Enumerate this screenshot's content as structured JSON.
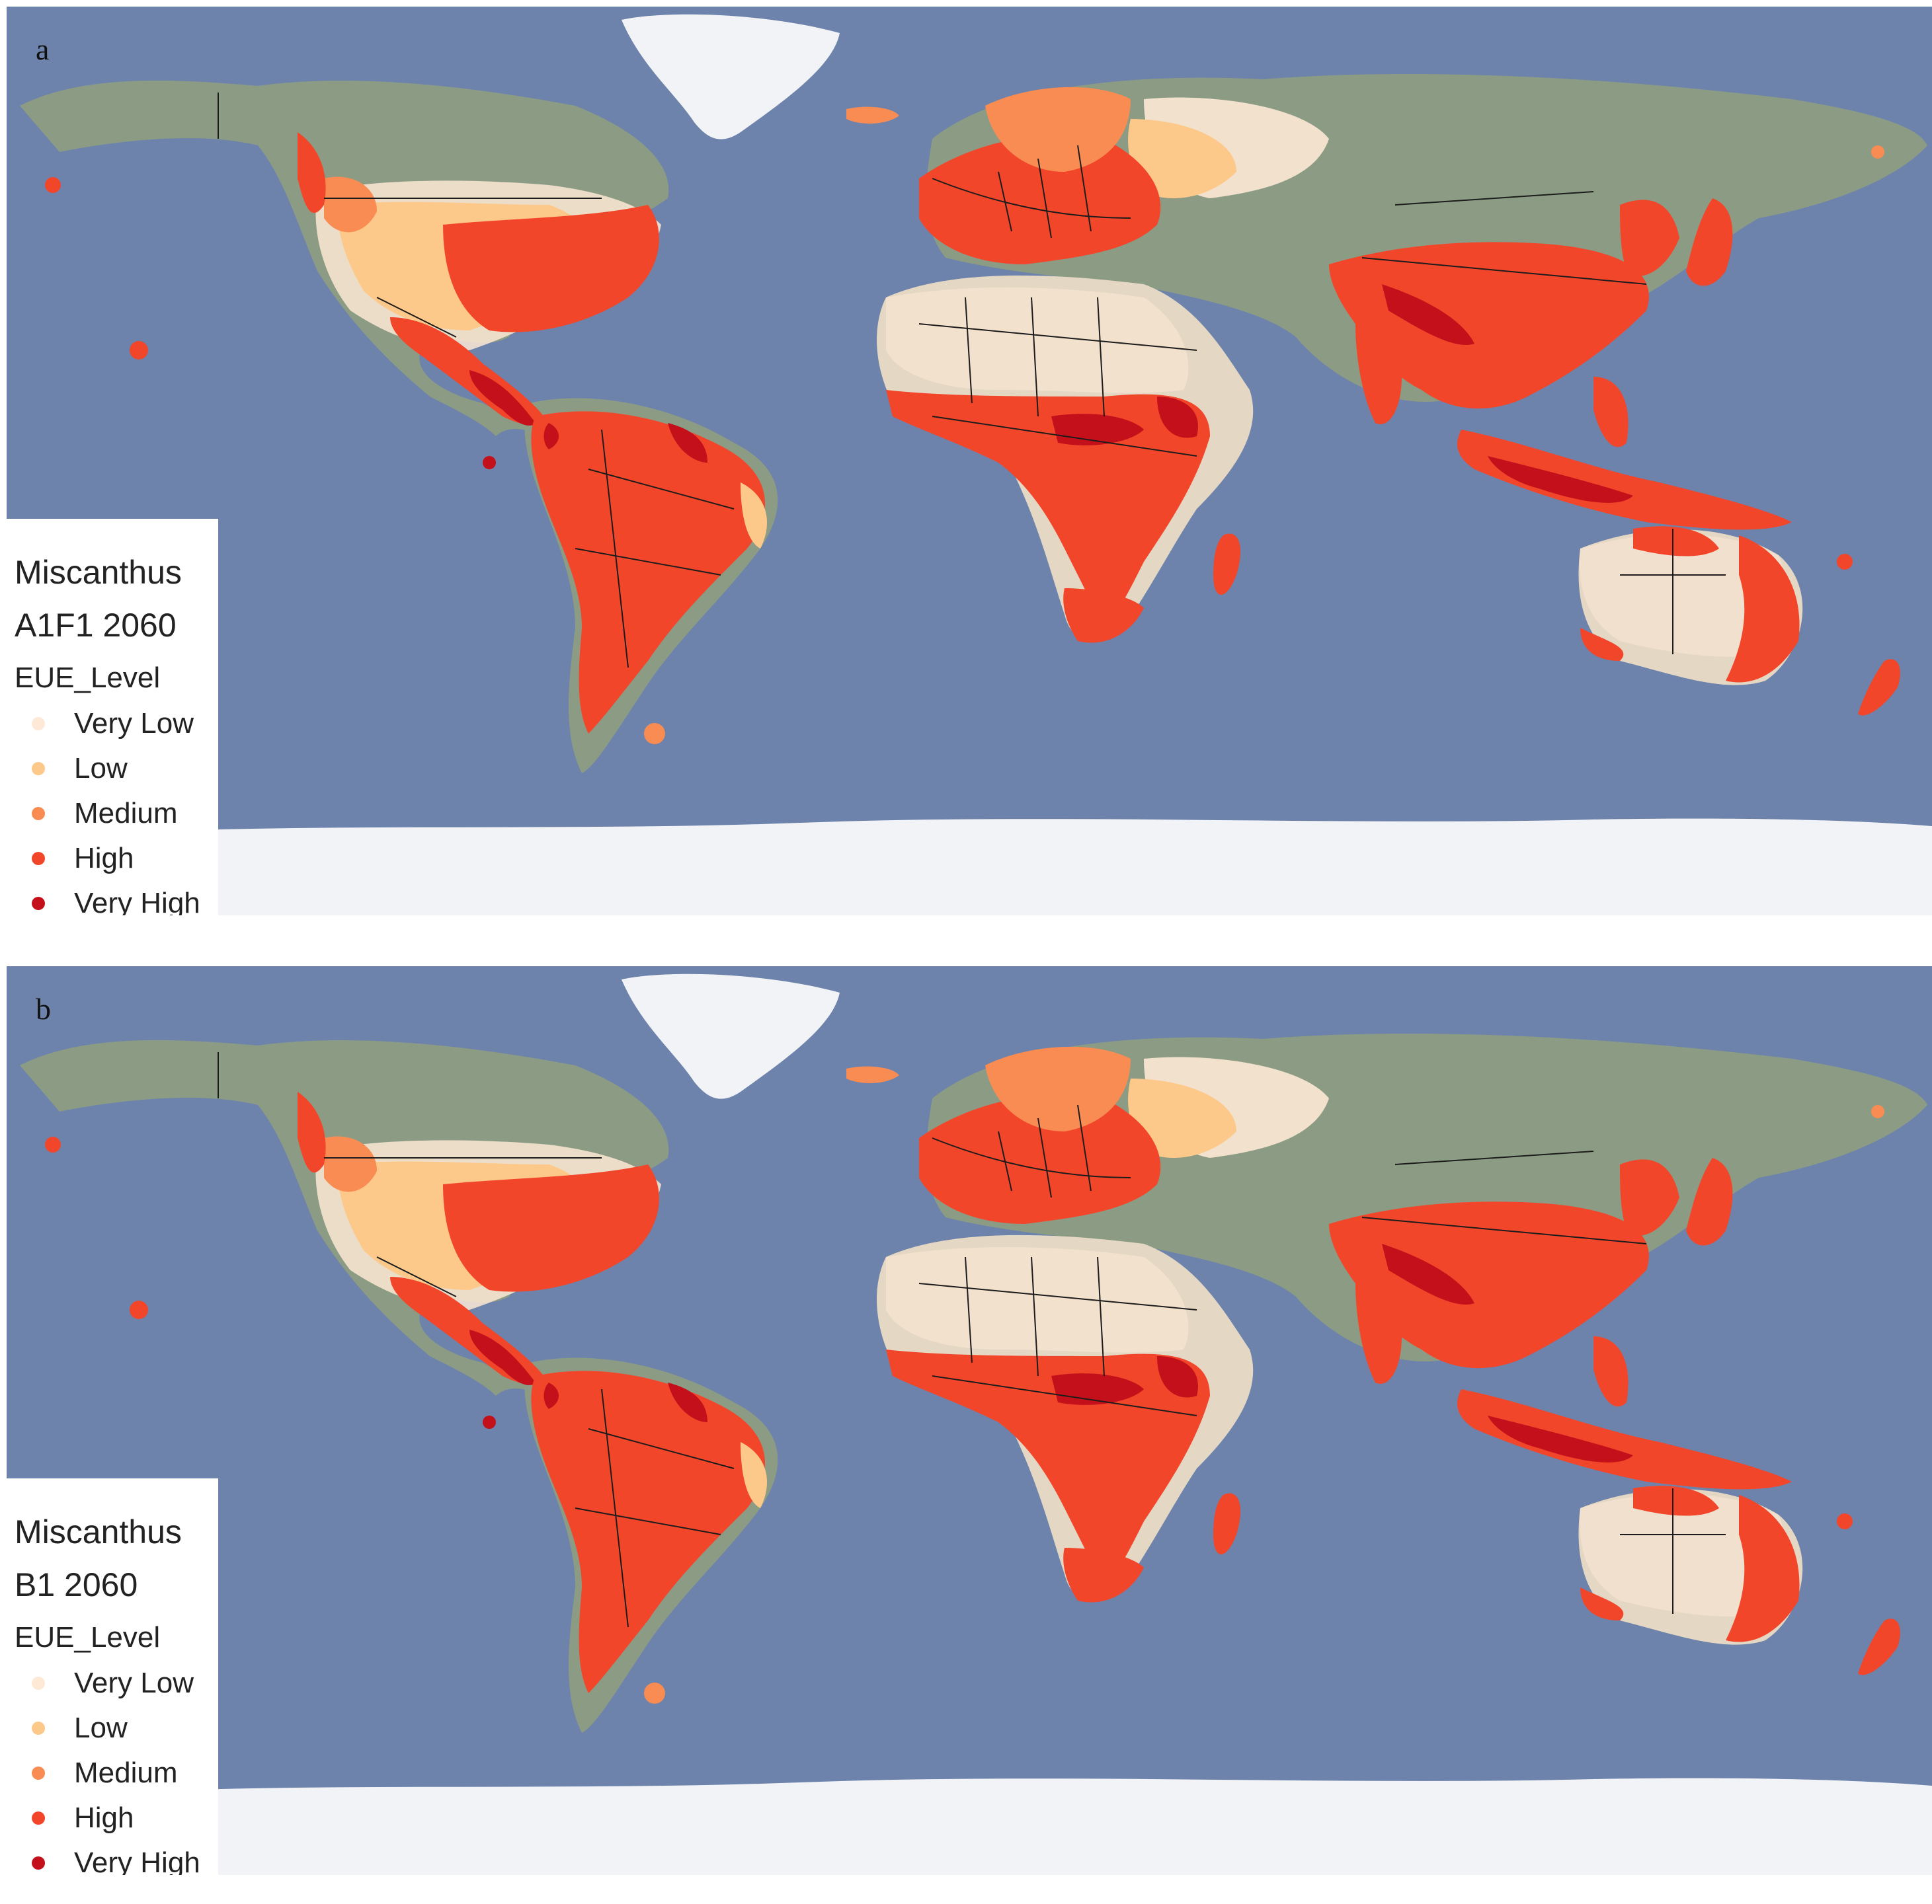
{
  "panels": [
    {
      "letter": "a",
      "legend": {
        "crop": "Miscanthus",
        "scenario": "A1F1 2060",
        "field": "EUE_Level"
      }
    },
    {
      "letter": "b",
      "legend": {
        "crop": "Miscanthus",
        "scenario": "B1 2060",
        "field": "EUE_Level"
      }
    }
  ],
  "classes": [
    {
      "label": "Very Low",
      "color": "#fde9d5"
    },
    {
      "label": "Low",
      "color": "#fdc98a"
    },
    {
      "label": "Medium",
      "color": "#f98c52"
    },
    {
      "label": "High",
      "color": "#f2462b"
    },
    {
      "label": "Very High",
      "color": "#c4101a"
    }
  ],
  "palette": {
    "ocean": "#6d83ab",
    "land_cold": "#8c9c84",
    "desert": "#e4d7c4",
    "ice": "#f2f3f6",
    "border": "#1c1c1c"
  }
}
